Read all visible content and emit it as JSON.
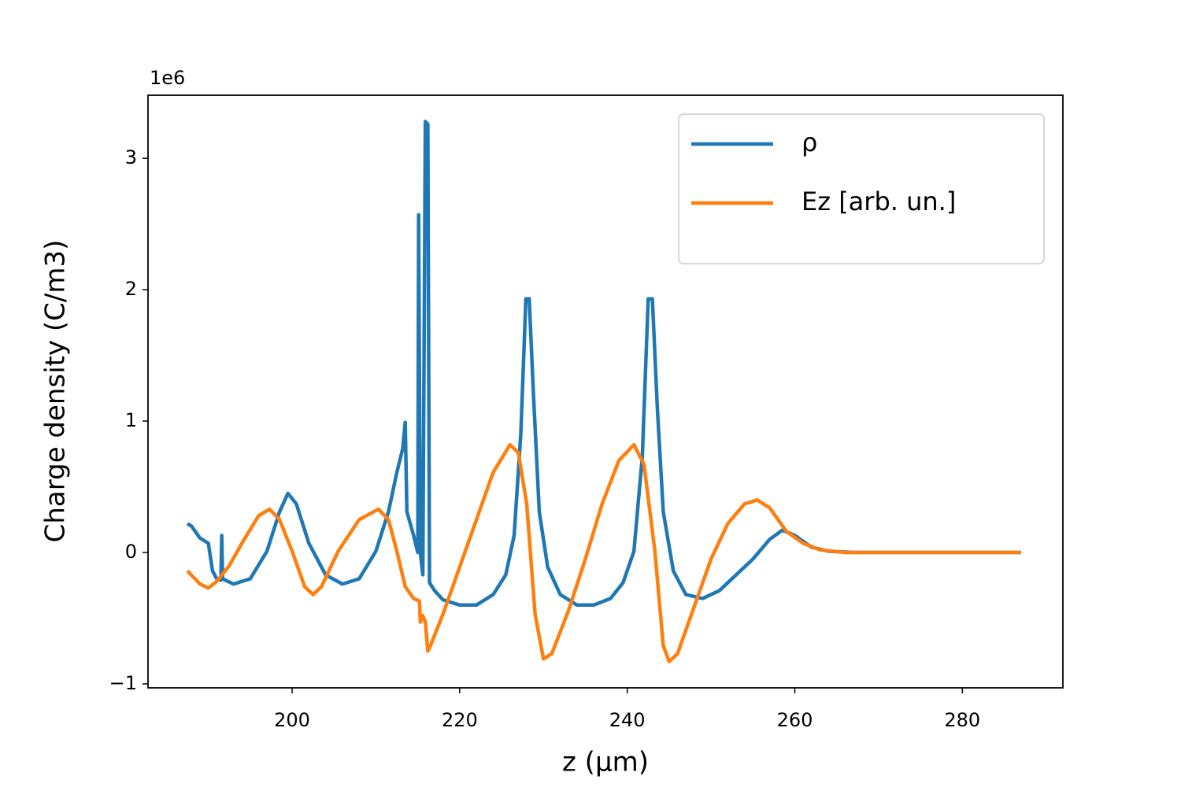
{
  "chart_data": {
    "type": "line",
    "xlabel": "z (μm)",
    "ylabel": "Charge density (C/m3)",
    "y_offset_label": "1e6",
    "xlim": [
      182.8,
      292.0
    ],
    "ylim": [
      -1.03,
      3.48
    ],
    "xticks": [
      200,
      220,
      240,
      260,
      280
    ],
    "yticks": [
      {
        "value": -1,
        "label": "−1"
      },
      0,
      1,
      2,
      3
    ],
    "grid": false,
    "legend": "upper right",
    "series": [
      {
        "name": "ρ",
        "color": "#1f77b4",
        "x": [
          187.5,
          188,
          189,
          190,
          190.5,
          191,
          191.5,
          191.6,
          191.7,
          193,
          195,
          197,
          198.5,
          199.5,
          200.5,
          202,
          204,
          206,
          208,
          210,
          211.5,
          212.5,
          213.2,
          213.5,
          213.7,
          214.5,
          215,
          215.1,
          215.3,
          215.6,
          215.9,
          216.2,
          216.4,
          217,
          218,
          220,
          222,
          224,
          225.5,
          226.5,
          227.3,
          227.9,
          228.3,
          228.8,
          229.5,
          230.5,
          232,
          234,
          236,
          238,
          239.5,
          240.8,
          241.8,
          242.5,
          243,
          243.6,
          244.3,
          245.5,
          247,
          249,
          251,
          253,
          255,
          257,
          258.5,
          260,
          262,
          264,
          267,
          287
        ],
        "values": [
          0.22,
          0.2,
          0.11,
          0.07,
          -0.14,
          -0.2,
          -0.21,
          0.13,
          -0.2,
          -0.24,
          -0.2,
          0.01,
          0.31,
          0.45,
          0.37,
          0.07,
          -0.17,
          -0.24,
          -0.2,
          0.01,
          0.31,
          0.61,
          0.79,
          0.99,
          0.31,
          0.13,
          0.0,
          2.57,
          0.0,
          -0.17,
          3.28,
          3.26,
          -0.23,
          -0.29,
          -0.36,
          -0.4,
          -0.4,
          -0.32,
          -0.17,
          0.13,
          0.91,
          1.93,
          1.93,
          1.21,
          0.31,
          -0.11,
          -0.32,
          -0.4,
          -0.4,
          -0.35,
          -0.23,
          0.01,
          0.73,
          1.93,
          1.93,
          1.09,
          0.31,
          -0.14,
          -0.32,
          -0.35,
          -0.29,
          -0.17,
          -0.05,
          0.1,
          0.17,
          0.13,
          0.04,
          0.01,
          0,
          0
        ]
      },
      {
        "name": "Ez [arb. un.]",
        "color": "#ff7f0e",
        "x": [
          187.5,
          189,
          190,
          191,
          192.5,
          194,
          196,
          197.3,
          198.5,
          200,
          201.5,
          202.5,
          203.5,
          205.5,
          208,
          210.3,
          211.5,
          212.5,
          213.5,
          214.5,
          215.2,
          215.3,
          215.6,
          215.9,
          216.2,
          216.5,
          218,
          220,
          222,
          224,
          226,
          227,
          228,
          229,
          230,
          231,
          233,
          235,
          237,
          239,
          240.8,
          242,
          243.3,
          244.3,
          245,
          246,
          248,
          250,
          252,
          254,
          255.5,
          257,
          259,
          261,
          263,
          266,
          287
        ],
        "values": [
          -0.14,
          -0.24,
          -0.27,
          -0.22,
          -0.1,
          0.07,
          0.28,
          0.33,
          0.25,
          0.01,
          -0.26,
          -0.32,
          -0.26,
          0.01,
          0.25,
          0.33,
          0.25,
          0.01,
          -0.26,
          -0.35,
          -0.37,
          -0.53,
          -0.48,
          -0.53,
          -0.75,
          -0.71,
          -0.47,
          -0.11,
          0.25,
          0.61,
          0.82,
          0.76,
          0.37,
          -0.47,
          -0.81,
          -0.77,
          -0.44,
          -0.05,
          0.37,
          0.7,
          0.82,
          0.67,
          0.01,
          -0.71,
          -0.83,
          -0.77,
          -0.41,
          -0.05,
          0.22,
          0.37,
          0.4,
          0.34,
          0.16,
          0.07,
          0.02,
          0,
          0
        ]
      }
    ]
  }
}
